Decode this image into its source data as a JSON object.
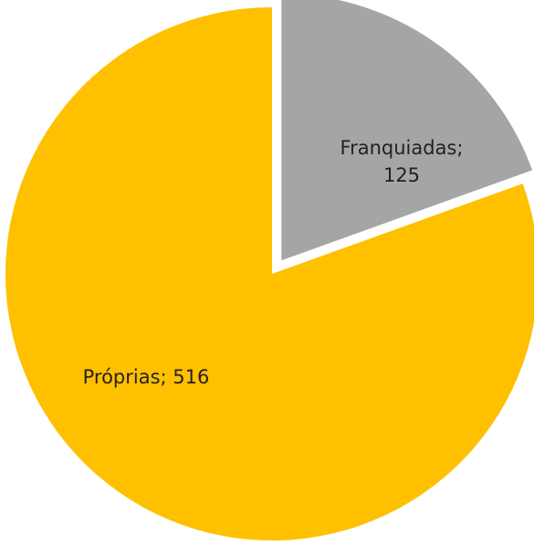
{
  "chart_data": {
    "type": "pie",
    "categories": [
      "Franquiadas",
      "Próprias"
    ],
    "values": [
      125,
      516
    ],
    "value_labels": [
      "Franquiadas; 125",
      "Próprias; 516"
    ],
    "colors": [
      "#A5A5A5",
      "#FFC000"
    ],
    "exploded": [
      true,
      false
    ]
  }
}
